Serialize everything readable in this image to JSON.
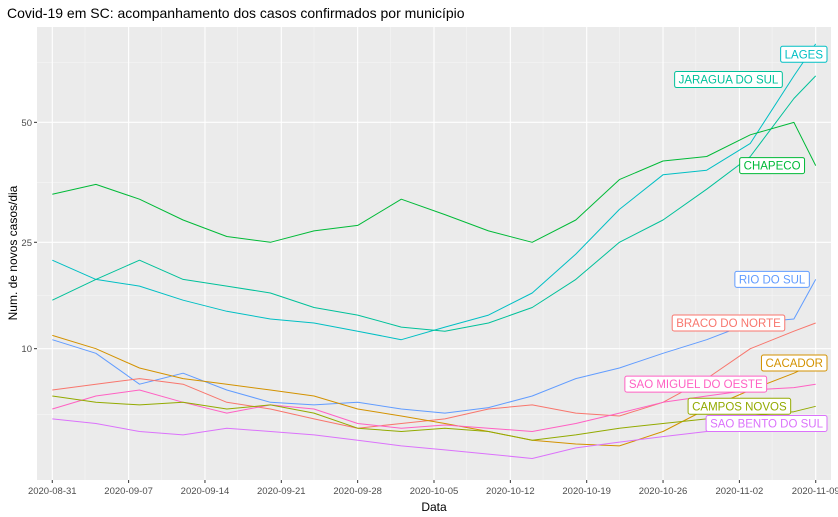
{
  "chart_data": {
    "type": "line",
    "title": "Covid-19 em SC: acompanhamento dos casos confirmados por município",
    "xlabel": "Data",
    "ylabel": "Num. de novos casos/dia",
    "y_scale": "sqrt",
    "y_ticks": [
      10,
      25,
      50
    ],
    "x_ticks": [
      "2020-08-31",
      "2020-09-07",
      "2020-09-14",
      "2020-09-21",
      "2020-09-28",
      "2020-10-05",
      "2020-10-12",
      "2020-10-19",
      "2020-10-26",
      "2020-11-02",
      "2020-11-09"
    ],
    "xlim": [
      "2020-08-31",
      "2020-11-09"
    ],
    "ylim": [
      0.8,
      76
    ],
    "grid": true,
    "legend": "labels at line ends",
    "x": [
      "2020-08-31",
      "2020-09-04",
      "2020-09-08",
      "2020-09-12",
      "2020-09-16",
      "2020-09-20",
      "2020-09-24",
      "2020-09-28",
      "2020-10-02",
      "2020-10-06",
      "2020-10-10",
      "2020-10-14",
      "2020-10-18",
      "2020-10-22",
      "2020-10-26",
      "2020-10-30",
      "2020-11-03",
      "2020-11-07",
      "2020-11-09"
    ],
    "series": [
      {
        "name": "LAGES",
        "color": "#00BFC4",
        "label_date": "2020-11-09",
        "label_value": 68,
        "values": [
          22,
          19,
          18,
          16,
          14.5,
          13.5,
          13,
          12,
          11,
          12.5,
          14,
          17,
          23,
          31,
          38,
          39,
          45,
          62,
          71
        ]
      },
      {
        "name": "JARAGUA DO SUL",
        "color": "#00C19A",
        "label_date": "2020-11-01",
        "label_value": 61,
        "values": [
          16,
          19,
          22,
          19,
          18,
          17,
          15,
          14,
          12.5,
          12,
          13,
          15,
          19,
          25,
          29,
          35,
          42,
          56,
          62
        ]
      },
      {
        "name": "CHAPECO",
        "color": "#00BA38",
        "label_date": "2020-11-05",
        "label_value": 40,
        "values": [
          34,
          36,
          33,
          29,
          26,
          25,
          27,
          28,
          33,
          30,
          27,
          25,
          29,
          37,
          41,
          42,
          47,
          50,
          40
        ]
      },
      {
        "name": "RIO DO SUL",
        "color": "#619CFF",
        "label_date": "2020-11-05",
        "label_value": 19,
        "values": [
          11,
          9.5,
          6.5,
          7.5,
          6,
          5,
          4.8,
          5,
          4.5,
          4.2,
          4.6,
          5.5,
          7,
          8,
          9.5,
          11,
          13,
          13.5,
          19
        ]
      },
      {
        "name": "BRACO DO NORTE",
        "color": "#F8766D",
        "label_date": "2020-11-01",
        "label_value": 13,
        "values": [
          6,
          6.5,
          7,
          6.5,
          5,
          4.5,
          3.8,
          3.2,
          3.5,
          3.8,
          4.5,
          4.8,
          4.2,
          4,
          5,
          7,
          10,
          12,
          13
        ]
      },
      {
        "name": "CACADOR",
        "color": "#D39200",
        "label_date": "2020-11-08",
        "label_value": 8.5,
        "values": [
          11.5,
          10,
          8,
          7,
          6.5,
          6,
          5.5,
          4.5,
          4,
          3.5,
          3,
          2.5,
          2.3,
          2.2,
          3,
          4.5,
          6,
          7.5,
          8.5
        ]
      },
      {
        "name": "SAO MIGUEL DO OESTE",
        "color": "#FF61C3",
        "label_date": "2020-10-29",
        "label_value": 6.5,
        "values": [
          4.5,
          5.5,
          6,
          5,
          4.2,
          4.8,
          4.5,
          3.5,
          3.2,
          3.4,
          3.2,
          3,
          3.5,
          4.2,
          5,
          5.5,
          6,
          6.2,
          6.5
        ]
      },
      {
        "name": "CAMPOS NOVOS",
        "color": "#93AA00",
        "label_date": "2020-11-02",
        "label_value": 4.7,
        "values": [
          5.5,
          5,
          4.8,
          5,
          4.5,
          4.8,
          4.2,
          3.2,
          3,
          3.2,
          3,
          2.5,
          2.8,
          3.2,
          3.5,
          3.8,
          4,
          4.3,
          4.7
        ]
      },
      {
        "name": "SAO BENTO DO SUL",
        "color": "#DB72FB",
        "label_date": "2020-11-06",
        "label_value": 3.5,
        "values": [
          3.8,
          3.5,
          3,
          2.8,
          3.2,
          3,
          2.8,
          2.5,
          2.2,
          2,
          1.8,
          1.6,
          2.1,
          2.4,
          2.7,
          3,
          3.2,
          3.4,
          3.5
        ]
      }
    ]
  }
}
